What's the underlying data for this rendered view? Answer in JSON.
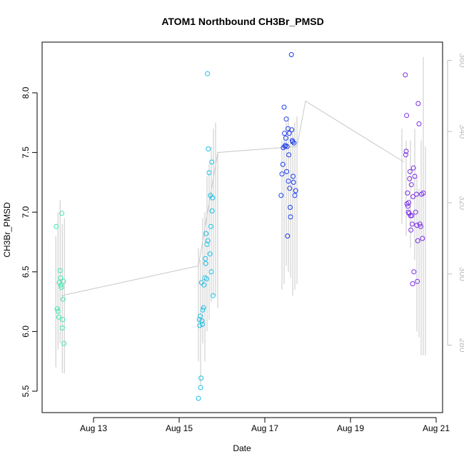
{
  "chart_data": {
    "type": "scatter",
    "title": "ATOM1 Northbound CH3Br_PMSD",
    "xlabel": "Date",
    "ylabel": "CH3Br_PMSD",
    "ylim": [
      5.4,
      8.4
    ],
    "y2lim": [
      264,
      360
    ],
    "xlim": [
      0.0,
      9.0
    ],
    "x_tick_labels": [
      {
        "x": 1.0,
        "label": "Aug 13"
      },
      {
        "x": 3.0,
        "label": "Aug 15"
      },
      {
        "x": 5.0,
        "label": "Aug 17"
      },
      {
        "x": 7.0,
        "label": "Aug 19"
      },
      {
        "x": 9.0,
        "label": "Aug 21"
      }
    ],
    "y_ticks": [
      "5.5",
      "6.0",
      "6.5",
      "7.0",
      "7.5",
      "8.0"
    ],
    "y2_ticks": [
      "280",
      "300",
      "320",
      "340",
      "360"
    ],
    "color_groups": {
      "aug12": "#39e8b0",
      "aug15": "#17c0e6",
      "aug17": "#1c3ef0",
      "aug20": "#7a2ce8"
    },
    "secondary_line": {
      "name": "Date-mean",
      "color": "#c8c8c8",
      "points": [
        [
          0.25,
          6.3
        ],
        [
          3.45,
          6.55
        ],
        [
          3.9,
          7.5
        ],
        [
          5.75,
          7.55
        ],
        [
          5.95,
          7.93
        ],
        [
          8.25,
          7.42
        ]
      ]
    },
    "secondary_vlines": {
      "color": "#c8c8c8",
      "segments": [
        [
          0.12,
          5.7,
          6.8
        ],
        [
          0.17,
          5.85,
          7.0
        ],
        [
          0.22,
          5.9,
          7.1
        ],
        [
          0.27,
          5.65,
          6.9
        ],
        [
          0.32,
          5.65,
          6.95
        ],
        [
          3.45,
          5.75,
          6.7
        ],
        [
          3.5,
          5.55,
          6.6
        ],
        [
          3.55,
          5.9,
          6.95
        ],
        [
          3.6,
          5.75,
          7.0
        ],
        [
          3.65,
          6.0,
          7.3
        ],
        [
          3.7,
          6.1,
          7.4
        ],
        [
          3.75,
          6.25,
          7.55
        ],
        [
          3.8,
          6.3,
          7.7
        ],
        [
          3.85,
          6.3,
          7.75
        ],
        [
          3.9,
          6.2,
          7.5
        ],
        [
          5.4,
          6.35,
          7.6
        ],
        [
          5.45,
          6.4,
          7.65
        ],
        [
          5.5,
          6.55,
          7.75
        ],
        [
          5.55,
          6.5,
          7.8
        ],
        [
          5.6,
          6.45,
          7.7
        ],
        [
          5.65,
          6.3,
          7.7
        ],
        [
          5.7,
          6.35,
          7.75
        ],
        [
          5.75,
          6.4,
          7.8
        ],
        [
          8.2,
          6.9,
          7.7
        ],
        [
          8.3,
          6.8,
          7.6
        ],
        [
          8.4,
          6.7,
          7.6
        ],
        [
          8.5,
          6.6,
          7.7
        ],
        [
          8.55,
          6.0,
          7.3
        ],
        [
          8.6,
          5.95,
          7.2
        ],
        [
          8.65,
          5.8,
          7.6
        ],
        [
          8.7,
          5.8,
          8.3
        ],
        [
          8.75,
          5.8,
          7.55
        ]
      ]
    },
    "series": [
      {
        "name": "aug12",
        "x": [
          0.13,
          0.15,
          0.17,
          0.19,
          0.2,
          0.22,
          0.23,
          0.24,
          0.25,
          0.26,
          0.27,
          0.28,
          0.29,
          0.3,
          0.31
        ],
        "y": [
          6.88,
          6.19,
          6.17,
          6.12,
          6.41,
          6.51,
          6.45,
          6.39,
          6.37,
          6.99,
          6.03,
          6.1,
          6.27,
          6.42,
          5.9
        ]
      },
      {
        "name": "aug15",
        "x": [
          3.45,
          3.47,
          3.48,
          3.49,
          3.5,
          3.51,
          3.52,
          3.53,
          3.54,
          3.55,
          3.57,
          3.58,
          3.6,
          3.61,
          3.62,
          3.63,
          3.64,
          3.65,
          3.66,
          3.67,
          3.68,
          3.7,
          3.72,
          3.73,
          3.74,
          3.75,
          3.76,
          3.77,
          3.78,
          3.79
        ],
        "y": [
          5.44,
          6.1,
          6.05,
          6.13,
          5.53,
          5.61,
          6.41,
          6.09,
          6.06,
          6.18,
          6.2,
          6.39,
          6.45,
          6.61,
          6.57,
          6.82,
          6.44,
          6.73,
          8.16,
          6.76,
          7.53,
          7.33,
          6.65,
          7.14,
          6.88,
          6.5,
          7.42,
          7.01,
          7.12,
          6.3
        ]
      },
      {
        "name": "aug17",
        "x": [
          5.38,
          5.4,
          5.42,
          5.43,
          5.45,
          5.46,
          5.47,
          5.48,
          5.49,
          5.5,
          5.51,
          5.52,
          5.53,
          5.54,
          5.55,
          5.56,
          5.57,
          5.58,
          5.59,
          5.6,
          5.62,
          5.63,
          5.64,
          5.65,
          5.66,
          5.67,
          5.68,
          5.7,
          5.72
        ],
        "y": [
          7.14,
          7.32,
          7.4,
          7.54,
          7.88,
          7.66,
          7.55,
          7.56,
          7.62,
          7.78,
          7.34,
          7.55,
          6.8,
          7.7,
          7.26,
          7.48,
          7.66,
          7.2,
          7.04,
          6.96,
          8.32,
          7.69,
          7.6,
          7.59,
          7.3,
          7.25,
          7.58,
          7.14,
          7.18
        ]
      },
      {
        "name": "aug20",
        "x": [
          8.28,
          8.29,
          8.3,
          8.31,
          8.32,
          8.33,
          8.34,
          8.35,
          8.36,
          8.37,
          8.38,
          8.39,
          8.4,
          8.41,
          8.42,
          8.43,
          8.44,
          8.45,
          8.46,
          8.47,
          8.48,
          8.5,
          8.52,
          8.54,
          8.55,
          8.56,
          8.57,
          8.58,
          8.6,
          8.62,
          8.64,
          8.66,
          8.68,
          8.7
        ],
        "y": [
          8.15,
          7.48,
          7.51,
          7.81,
          7.07,
          7.16,
          7.05,
          7.0,
          7.08,
          6.99,
          7.28,
          7.34,
          6.97,
          6.85,
          7.23,
          6.97,
          6.9,
          6.4,
          7.13,
          7.37,
          6.5,
          7.3,
          7.0,
          7.15,
          6.89,
          6.42,
          6.76,
          7.91,
          7.74,
          6.9,
          6.88,
          7.15,
          6.78,
          7.16
        ]
      }
    ]
  }
}
